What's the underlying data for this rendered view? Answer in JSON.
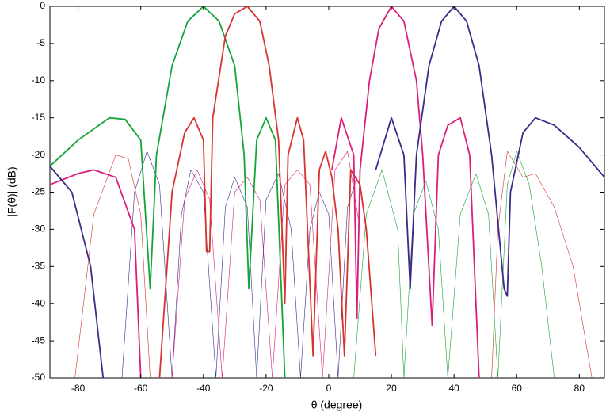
{
  "chart_data": {
    "type": "line",
    "xlabel": "θ (degree)",
    "ylabel": "|F(θ)| (dB)",
    "xlim": [
      -89,
      88
    ],
    "ylim": [
      -50,
      0
    ],
    "xticks": [
      -80,
      -60,
      -40,
      -20,
      0,
      20,
      40,
      60,
      80
    ],
    "yticks": [
      0,
      -5,
      -10,
      -15,
      -20,
      -25,
      -30,
      -35,
      -40,
      -45,
      -50
    ],
    "series": [
      {
        "color": "#d7332e",
        "line_width": 0.6,
        "x": [
          -81,
          -75,
          -68,
          -64,
          -60,
          -57,
          0,
          52,
          54,
          57,
          62,
          66,
          72,
          78,
          84
        ],
        "values": [
          -50,
          -28,
          -20,
          -20.5,
          -28,
          -50,
          null,
          -50,
          -30,
          -19.5,
          -23,
          -22.5,
          -27,
          -35,
          -50
        ]
      },
      {
        "color": "#3b2a8a",
        "line_width": 0.6,
        "x": [
          -66,
          -62,
          -58,
          -54,
          -50,
          -47,
          -44,
          -40,
          -36,
          -33,
          -30,
          -26,
          -23,
          -20,
          -16,
          -12,
          -9,
          -6,
          -3,
          0,
          3,
          6,
          9
        ],
        "values": [
          -50,
          -25,
          -19.5,
          -24,
          -50,
          -28,
          -22,
          -25,
          -50,
          -27,
          -23,
          -27,
          -50,
          -26,
          -22.5,
          -30,
          -50,
          -30,
          -25,
          -28,
          -50,
          -27,
          -23
        ]
      },
      {
        "color": "#dc1e7a",
        "line_width": 0.6,
        "x": [
          -50,
          -46,
          -42,
          -38,
          -34,
          -30,
          -26,
          -22,
          -18,
          -14,
          -10,
          -6,
          -2,
          2,
          6,
          10
        ],
        "values": [
          -50,
          -26,
          -22,
          -26,
          -50,
          -25,
          -23,
          -26,
          -50,
          -24,
          -22,
          -24,
          -50,
          -22,
          -19.5,
          -30
        ]
      },
      {
        "color": "#13a538",
        "line_width": 0.6,
        "x": [
          8,
          12,
          17,
          22,
          24,
          27,
          31,
          35,
          38,
          42,
          47,
          51,
          54,
          57,
          60,
          64,
          68,
          72
        ],
        "values": [
          -50,
          -28,
          -22,
          -30,
          -50,
          -28,
          -23.5,
          -30,
          -50,
          -28,
          -22.5,
          -28,
          -50,
          -24,
          -19.5,
          -24,
          -35,
          -50
        ]
      },
      {
        "color": "#13a538",
        "line_width": 1.8,
        "x": [
          -89,
          -80,
          -70,
          -65,
          -60,
          -57,
          -55,
          -50,
          -45,
          -40,
          -35,
          -30,
          -27,
          -25.5,
          -23,
          -20,
          -17,
          -14
        ],
        "values": [
          -21.5,
          -18,
          -15,
          -15.2,
          -18,
          -38,
          -20,
          -8,
          -2,
          0,
          -2,
          -8,
          -20,
          -38,
          -18,
          -15,
          -18,
          -50
        ]
      },
      {
        "color": "#d7332e",
        "line_width": 1.8,
        "x": [
          -54,
          -50,
          -46,
          -43,
          -40,
          -39,
          -38,
          -37,
          -33,
          -30,
          -26,
          -22,
          -19,
          -16,
          -14,
          -13,
          -10,
          -8,
          -5,
          -3,
          -1,
          1,
          3,
          5,
          7,
          10,
          12,
          15
        ],
        "values": [
          -50,
          -25,
          -17,
          -15,
          -18,
          -33,
          -33,
          -15,
          -4,
          -1,
          0,
          -2,
          -8,
          -18,
          -40,
          -20,
          -15,
          -18,
          -47,
          -22,
          -19.5,
          -23,
          -30,
          -47,
          -22,
          -24,
          -30,
          -47
        ]
      },
      {
        "color": "#dc1e7a",
        "line_width": 1.8,
        "x": [
          -89,
          -80,
          -75,
          -68,
          -62,
          -60,
          0,
          1,
          4,
          8,
          9,
          10,
          13,
          16,
          20,
          24,
          28,
          30,
          33,
          35,
          38,
          42,
          45,
          48
        ],
        "values": [
          -24,
          -22.5,
          -22,
          -23,
          -30,
          -50,
          null,
          -22,
          -15,
          -20,
          -42,
          -22,
          -10,
          -3,
          0,
          -2,
          -10,
          -20,
          -43,
          -20,
          -16,
          -15,
          -20,
          -50
        ]
      },
      {
        "color": "#3b2a8a",
        "line_width": 1.8,
        "x": [
          -89,
          -82,
          -76,
          -72,
          0,
          15,
          20,
          24,
          26,
          28,
          32,
          36,
          40,
          44,
          48,
          52,
          56,
          57,
          58,
          62,
          66,
          72,
          80,
          88
        ],
        "values": [
          -21.5,
          -25,
          -35,
          -50,
          null,
          -22,
          -15,
          -20,
          -38,
          -20,
          -8,
          -2,
          0,
          -2,
          -8,
          -20,
          -38,
          -39,
          -25,
          -17,
          -15,
          -16,
          -19,
          -23
        ]
      }
    ]
  }
}
